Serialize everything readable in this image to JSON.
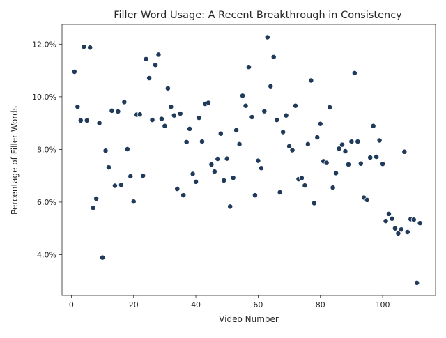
{
  "chart_data": {
    "type": "scatter",
    "title": "Filler Word Usage: A Recent Breakthrough in Consistency",
    "xlabel": "Video Number",
    "ylabel": "Percentage of Filler Words",
    "xlim": [
      -3,
      117
    ],
    "ylim": [
      0.0245,
      0.1275
    ],
    "xticks": [
      0,
      20,
      40,
      60,
      80,
      100
    ],
    "xtick_labels": [
      "0",
      "20",
      "40",
      "60",
      "80",
      "100"
    ],
    "yticks": [
      0.04,
      0.06,
      0.08,
      0.1,
      0.12
    ],
    "ytick_labels": [
      "4.0%",
      "6.0%",
      "8.0%",
      "10.0%",
      "12.0%"
    ],
    "grid": false,
    "marker_color": "#1f3a5a",
    "marker_edge": "#ffffff",
    "series": [
      {
        "points": [
          [
            1,
            0.1095
          ],
          [
            2,
            0.0962
          ],
          [
            3,
            0.091
          ],
          [
            4,
            0.119
          ],
          [
            5,
            0.091
          ],
          [
            6,
            0.1187
          ],
          [
            7,
            0.0578
          ],
          [
            8,
            0.0613
          ],
          [
            9,
            0.09
          ],
          [
            10,
            0.0389
          ],
          [
            11,
            0.0795
          ],
          [
            12,
            0.0732
          ],
          [
            13,
            0.0947
          ],
          [
            14,
            0.0662
          ],
          [
            15,
            0.0944
          ],
          [
            16,
            0.0665
          ],
          [
            17,
            0.098
          ],
          [
            18,
            0.0801
          ],
          [
            19,
            0.0698
          ],
          [
            20,
            0.0602
          ],
          [
            21,
            0.0932
          ],
          [
            22,
            0.0933
          ],
          [
            23,
            0.07
          ],
          [
            24,
            0.1143
          ],
          [
            25,
            0.1071
          ],
          [
            26,
            0.0912
          ],
          [
            27,
            0.1121
          ],
          [
            28,
            0.116
          ],
          [
            29,
            0.0916
          ],
          [
            30,
            0.0889
          ],
          [
            31,
            0.1032
          ],
          [
            32,
            0.0962
          ],
          [
            33,
            0.0929
          ],
          [
            34,
            0.065
          ],
          [
            35,
            0.0936
          ],
          [
            36,
            0.0626
          ],
          [
            37,
            0.0828
          ],
          [
            38,
            0.0878
          ],
          [
            39,
            0.0707
          ],
          [
            40,
            0.0677
          ],
          [
            41,
            0.092
          ],
          [
            42,
            0.083
          ],
          [
            43,
            0.0973
          ],
          [
            44,
            0.0977
          ],
          [
            45,
            0.0743
          ],
          [
            46,
            0.0716
          ],
          [
            47,
            0.0764
          ],
          [
            48,
            0.086
          ],
          [
            49,
            0.0682
          ],
          [
            50,
            0.0765
          ],
          [
            51,
            0.0583
          ],
          [
            52,
            0.0692
          ],
          [
            53,
            0.0873
          ],
          [
            54,
            0.082
          ],
          [
            55,
            0.1004
          ],
          [
            56,
            0.0966
          ],
          [
            57,
            0.1113
          ],
          [
            58,
            0.0923
          ],
          [
            59,
            0.0626
          ],
          [
            60,
            0.0757
          ],
          [
            61,
            0.0729
          ],
          [
            62,
            0.0945
          ],
          [
            63,
            0.1226
          ],
          [
            64,
            0.104
          ],
          [
            65,
            0.1151
          ],
          [
            66,
            0.0912
          ],
          [
            67,
            0.0637
          ],
          [
            68,
            0.0866
          ],
          [
            69,
            0.0929
          ],
          [
            70,
            0.0812
          ],
          [
            71,
            0.0797
          ],
          [
            72,
            0.0966
          ],
          [
            73,
            0.0687
          ],
          [
            74,
            0.0691
          ],
          [
            75,
            0.0663
          ],
          [
            76,
            0.082
          ],
          [
            77,
            0.1062
          ],
          [
            78,
            0.0596
          ],
          [
            79,
            0.0846
          ],
          [
            80,
            0.0897
          ],
          [
            81,
            0.0755
          ],
          [
            82,
            0.0749
          ],
          [
            83,
            0.096
          ],
          [
            84,
            0.0655
          ],
          [
            85,
            0.071
          ],
          [
            86,
            0.0803
          ],
          [
            87,
            0.0818
          ],
          [
            88,
            0.0793
          ],
          [
            89,
            0.0743
          ],
          [
            90,
            0.083
          ],
          [
            91,
            0.109
          ],
          [
            92,
            0.083
          ],
          [
            93,
            0.0746
          ],
          [
            94,
            0.0617
          ],
          [
            95,
            0.0608
          ],
          [
            96,
            0.0769
          ],
          [
            97,
            0.0889
          ],
          [
            98,
            0.0772
          ],
          [
            99,
            0.0834
          ],
          [
            100,
            0.0745
          ],
          [
            101,
            0.0528
          ],
          [
            102,
            0.0555
          ],
          [
            103,
            0.0537
          ],
          [
            104,
            0.05
          ],
          [
            105,
            0.0481
          ],
          [
            106,
            0.0496
          ],
          [
            107,
            0.0791
          ],
          [
            108,
            0.0486
          ],
          [
            109,
            0.0535
          ],
          [
            110,
            0.0533
          ],
          [
            111,
            0.0293
          ],
          [
            112,
            0.052
          ]
        ]
      }
    ]
  }
}
